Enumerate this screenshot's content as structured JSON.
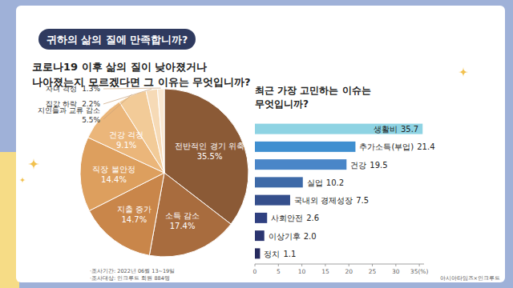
{
  "header": {
    "title": "귀하의 삶의 질에 만족합니까?"
  },
  "chart_data": [
    {
      "type": "pie",
      "title": "코로나19 이후 삶의 질이 낮아졌거나\n나아졌는지 모르겠다면 그 이유는 무엇입니까?",
      "categories": [
        "전반적인 경기 위축",
        "소득 감소",
        "지출 증가",
        "직장 불안정",
        "건강 걱정",
        "지인들과 교류 감소",
        "집값 하락",
        "자녀 걱정"
      ],
      "values": [
        35.5,
        17.4,
        14.7,
        14.4,
        9.1,
        5.5,
        2.2,
        1.3
      ],
      "value_labels": [
        "35.5%",
        "17.4%",
        "14.7%",
        "14.4%",
        "9.1%",
        "5.5%",
        "2.2%",
        "1.3%"
      ],
      "colors": [
        "#8b5a36",
        "#a86c3e",
        "#c9864a",
        "#dd9f5e",
        "#ebb67a",
        "#f2cb98",
        "#f6dab6",
        "#f9e8d2"
      ],
      "data_labels": true
    },
    {
      "type": "bar",
      "orientation": "horizontal",
      "title": "최근 가장 고민하는 이슈는\n무엇입니까?",
      "categories": [
        "생활비",
        "추가소득(부업)",
        "건강",
        "실업",
        "국내외 경제성장",
        "사회안전",
        "이상기후",
        "정치"
      ],
      "values": [
        35.7,
        21.4,
        19.5,
        10.2,
        7.5,
        2.6,
        2.0,
        1.1
      ],
      "value_labels": [
        "35.7",
        "21.4",
        "19.5",
        "10.2",
        "7.5",
        "2.6",
        "2.0",
        "1.1"
      ],
      "colors": [
        "#8ed3e3",
        "#3f8fd0",
        "#4a86c8",
        "#3e6aa8",
        "#354f8c",
        "#2f4080",
        "#2b3570",
        "#262a5e"
      ],
      "xlim": [
        0,
        36
      ],
      "xticks": [
        0,
        5,
        10,
        15,
        20,
        25,
        30,
        {
          "value": 35,
          "label": "35(%)"
        }
      ],
      "data_labels": true,
      "tick_labels": "x",
      "grid": false
    }
  ],
  "notes": [
    "·조사기간: 2022년 06월 13~19일",
    "·조사대상: 인크루트 회원 884명"
  ],
  "source": "아시아타임즈×인크루트"
}
